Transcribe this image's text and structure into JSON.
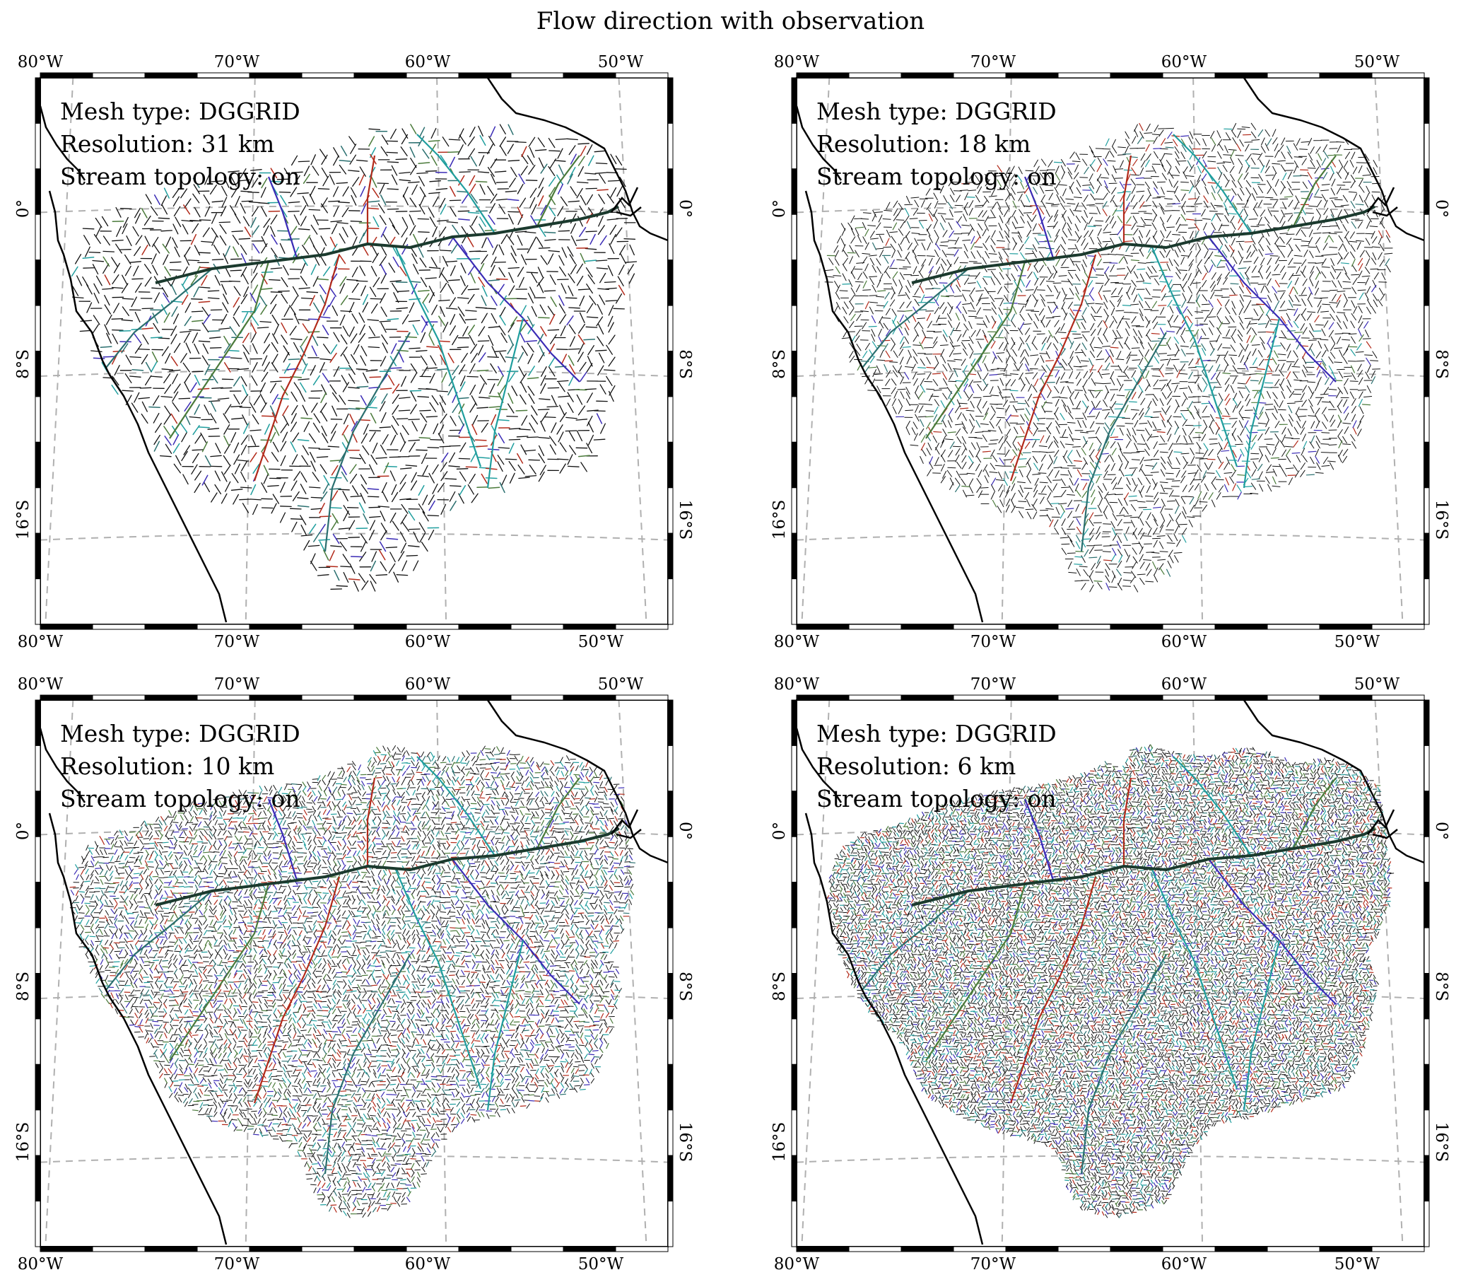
{
  "figure": {
    "title": "Flow direction with observation"
  },
  "axes": {
    "x_ticks": [
      "80°W",
      "70°W",
      "60°W",
      "50°W"
    ],
    "y_ticks": [
      "0°",
      "8°S",
      "16°S"
    ]
  },
  "panels": [
    {
      "mesh_line": "Mesh type: DGGRID",
      "resolution_line": "Resolution: 31 km",
      "topology_line": "Stream topology: on",
      "resolution_km": 31
    },
    {
      "mesh_line": "Mesh type: DGGRID",
      "resolution_line": "Resolution: 18 km",
      "topology_line": "Stream topology: on",
      "resolution_km": 18
    },
    {
      "mesh_line": "Mesh type: DGGRID",
      "resolution_line": "Resolution: 10 km",
      "topology_line": "Stream topology: on",
      "resolution_km": 10
    },
    {
      "mesh_line": "Mesh type: DGGRID",
      "resolution_line": "Resolution: 6 km",
      "topology_line": "Stream topology: on",
      "resolution_km": 6
    }
  ],
  "colors": {
    "coastline": "#000000",
    "gridline": "#b0b0b0",
    "river_palette": [
      "#111111",
      "#1f9e9e",
      "#b22a1a",
      "#3a2bb5",
      "#4a7a3a",
      "#2a6f6f"
    ]
  }
}
